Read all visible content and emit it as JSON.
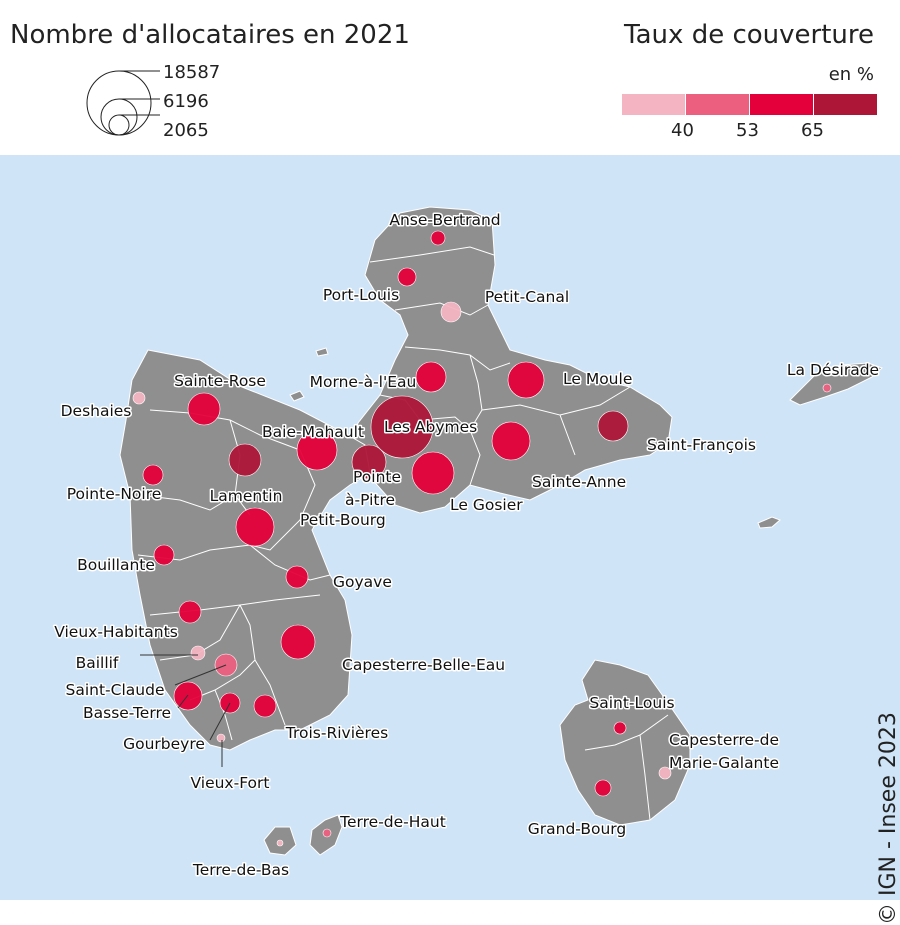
{
  "size_legend": {
    "title": "Nombre d'allocataires en 2021",
    "values": [
      "18587",
      "6196",
      "2065"
    ]
  },
  "rate_legend": {
    "title": "Taux de couverture",
    "unit": "en %",
    "breaks": [
      "40",
      "53",
      "65"
    ],
    "colors": [
      "#f4b4c2",
      "#ec5f7f",
      "#e4003a",
      "#ae1638"
    ]
  },
  "map_style": {
    "sea_color": "#cfe4f7",
    "land_color": "#8f8f8f",
    "border_color": "#ffffff"
  },
  "communes": [
    {
      "name": "Anse-Bertrand",
      "class": 2
    },
    {
      "name": "Port-Louis",
      "class": 2
    },
    {
      "name": "Petit-Canal",
      "class": 0
    },
    {
      "name": "Morne-à-l'Eau",
      "class": 2
    },
    {
      "name": "Le Moule",
      "class": 2
    },
    {
      "name": "La Désirade",
      "class": 1
    },
    {
      "name": "Sainte-Rose",
      "class": 2
    },
    {
      "name": "Deshaies",
      "class": 0
    },
    {
      "name": "Baie-Mahault",
      "class": 2
    },
    {
      "name": "Les Abymes",
      "class": 3
    },
    {
      "name": "Saint-François",
      "class": 3
    },
    {
      "name": "Pointe-à-Pitre",
      "class": 3
    },
    {
      "name": "Le Gosier",
      "class": 2
    },
    {
      "name": "Sainte-Anne",
      "class": 2
    },
    {
      "name": "Pointe-Noire",
      "class": 2
    },
    {
      "name": "Lamentin",
      "class": 3
    },
    {
      "name": "Petit-Bourg",
      "class": 2
    },
    {
      "name": "Bouillante",
      "class": 2
    },
    {
      "name": "Goyave",
      "class": 2
    },
    {
      "name": "Vieux-Habitants",
      "class": 2
    },
    {
      "name": "Baillif",
      "class": 0
    },
    {
      "name": "Saint-Claude",
      "class": 1
    },
    {
      "name": "Basse-Terre",
      "class": 2
    },
    {
      "name": "Capesterre-Belle-Eau",
      "class": 2
    },
    {
      "name": "Gourbeyre",
      "class": 2
    },
    {
      "name": "Trois-Rivières",
      "class": 2
    },
    {
      "name": "Vieux-Fort",
      "class": 0
    },
    {
      "name": "Saint-Louis",
      "class": 2
    },
    {
      "name": "Capesterre-de Marie-Galante",
      "class": 0
    },
    {
      "name": "Grand-Bourg",
      "class": 2
    },
    {
      "name": "Terre-de-Haut",
      "class": 1
    },
    {
      "name": "Terre-de-Bas",
      "class": 0
    }
  ],
  "copyright": "© IGN - Insee 2023"
}
